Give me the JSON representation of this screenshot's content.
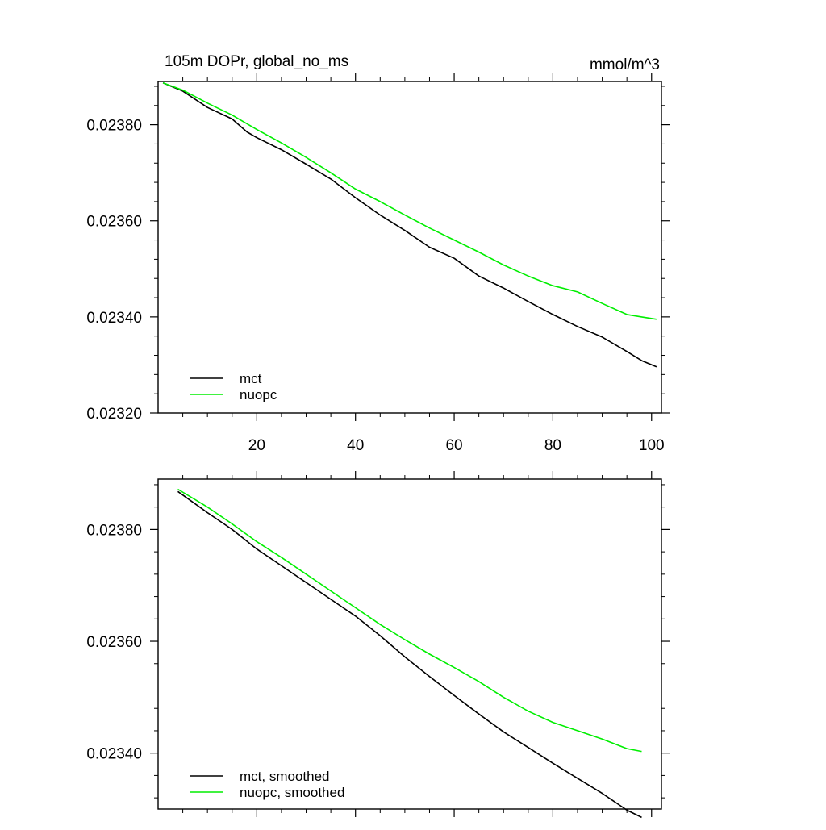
{
  "figure": {
    "title": "105m DOPr, global_no_ms",
    "units": "mmol/m^3"
  },
  "chart_data": [
    {
      "type": "line",
      "title": "105m DOPr, global_no_ms",
      "units_label": "mmol/m^3",
      "xlabel": "",
      "ylabel": "",
      "xlim": [
        0,
        102
      ],
      "ylim": [
        0.0232,
        0.02389
      ],
      "xticks": [
        20,
        40,
        60,
        80,
        100
      ],
      "xtick_labels": [
        "20",
        "40",
        "60",
        "80",
        "100"
      ],
      "yticks": [
        0.0238,
        0.0236,
        0.0234,
        0.0232
      ],
      "ytick_labels": [
        "0.02380",
        "0.02360",
        "0.02340",
        "0.02320"
      ],
      "grid": false,
      "legend_position": "bottom-left",
      "series": [
        {
          "name": "mct",
          "color": "#000000",
          "x": [
            1,
            5,
            10,
            15,
            18,
            20,
            25,
            30,
            35,
            40,
            45,
            50,
            55,
            60,
            65,
            70,
            75,
            80,
            85,
            90,
            95,
            98,
            101
          ],
          "y": [
            0.023887,
            0.02387,
            0.023836,
            0.023812,
            0.023785,
            0.023773,
            0.023748,
            0.023718,
            0.023687,
            0.023648,
            0.023612,
            0.02358,
            0.023545,
            0.023522,
            0.023485,
            0.02346,
            0.023432,
            0.023405,
            0.02338,
            0.023358,
            0.023328,
            0.023309,
            0.023296
          ]
        },
        {
          "name": "nuopc",
          "color": "#00ee00",
          "x": [
            1,
            5,
            10,
            15,
            20,
            25,
            30,
            35,
            40,
            45,
            50,
            55,
            60,
            65,
            70,
            75,
            80,
            85,
            90,
            95,
            98,
            101
          ],
          "y": [
            0.023887,
            0.023872,
            0.023845,
            0.02382,
            0.02379,
            0.023762,
            0.023732,
            0.0237,
            0.023666,
            0.02364,
            0.023612,
            0.023585,
            0.02356,
            0.023535,
            0.023508,
            0.023485,
            0.023465,
            0.023452,
            0.023428,
            0.023405,
            0.0234,
            0.023395
          ]
        }
      ]
    },
    {
      "type": "line",
      "title": "",
      "xlabel": "",
      "ylabel": "",
      "xlim": [
        0,
        102
      ],
      "ylim": [
        0.0233,
        0.02389
      ],
      "xticks": [
        20,
        40,
        60,
        80,
        100
      ],
      "xtick_labels": [],
      "yticks": [
        0.0238,
        0.0236,
        0.0234
      ],
      "ytick_labels": [
        "0.02380",
        "0.02360",
        "0.02340"
      ],
      "grid": false,
      "legend_position": "bottom-left",
      "series": [
        {
          "name": "mct, smoothed",
          "color": "#000000",
          "x": [
            4,
            10,
            15,
            20,
            25,
            30,
            35,
            40,
            45,
            50,
            55,
            60,
            65,
            70,
            75,
            80,
            85,
            90,
            95,
            98
          ],
          "y": [
            0.023868,
            0.02383,
            0.0238,
            0.023765,
            0.023735,
            0.023705,
            0.023675,
            0.023645,
            0.02361,
            0.023572,
            0.023537,
            0.023503,
            0.02347,
            0.023438,
            0.02341,
            0.023382,
            0.023355,
            0.023328,
            0.023298,
            0.023285
          ]
        },
        {
          "name": "nuopc, smoothed",
          "color": "#00ee00",
          "x": [
            4,
            10,
            15,
            20,
            25,
            30,
            35,
            40,
            45,
            50,
            55,
            60,
            65,
            70,
            75,
            80,
            85,
            90,
            95,
            98
          ],
          "y": [
            0.023872,
            0.02384,
            0.02381,
            0.023778,
            0.02375,
            0.02372,
            0.02369,
            0.02366,
            0.02363,
            0.023603,
            0.023577,
            0.023553,
            0.023528,
            0.0235,
            0.023475,
            0.023455,
            0.02344,
            0.023425,
            0.023408,
            0.023403
          ]
        }
      ]
    }
  ]
}
